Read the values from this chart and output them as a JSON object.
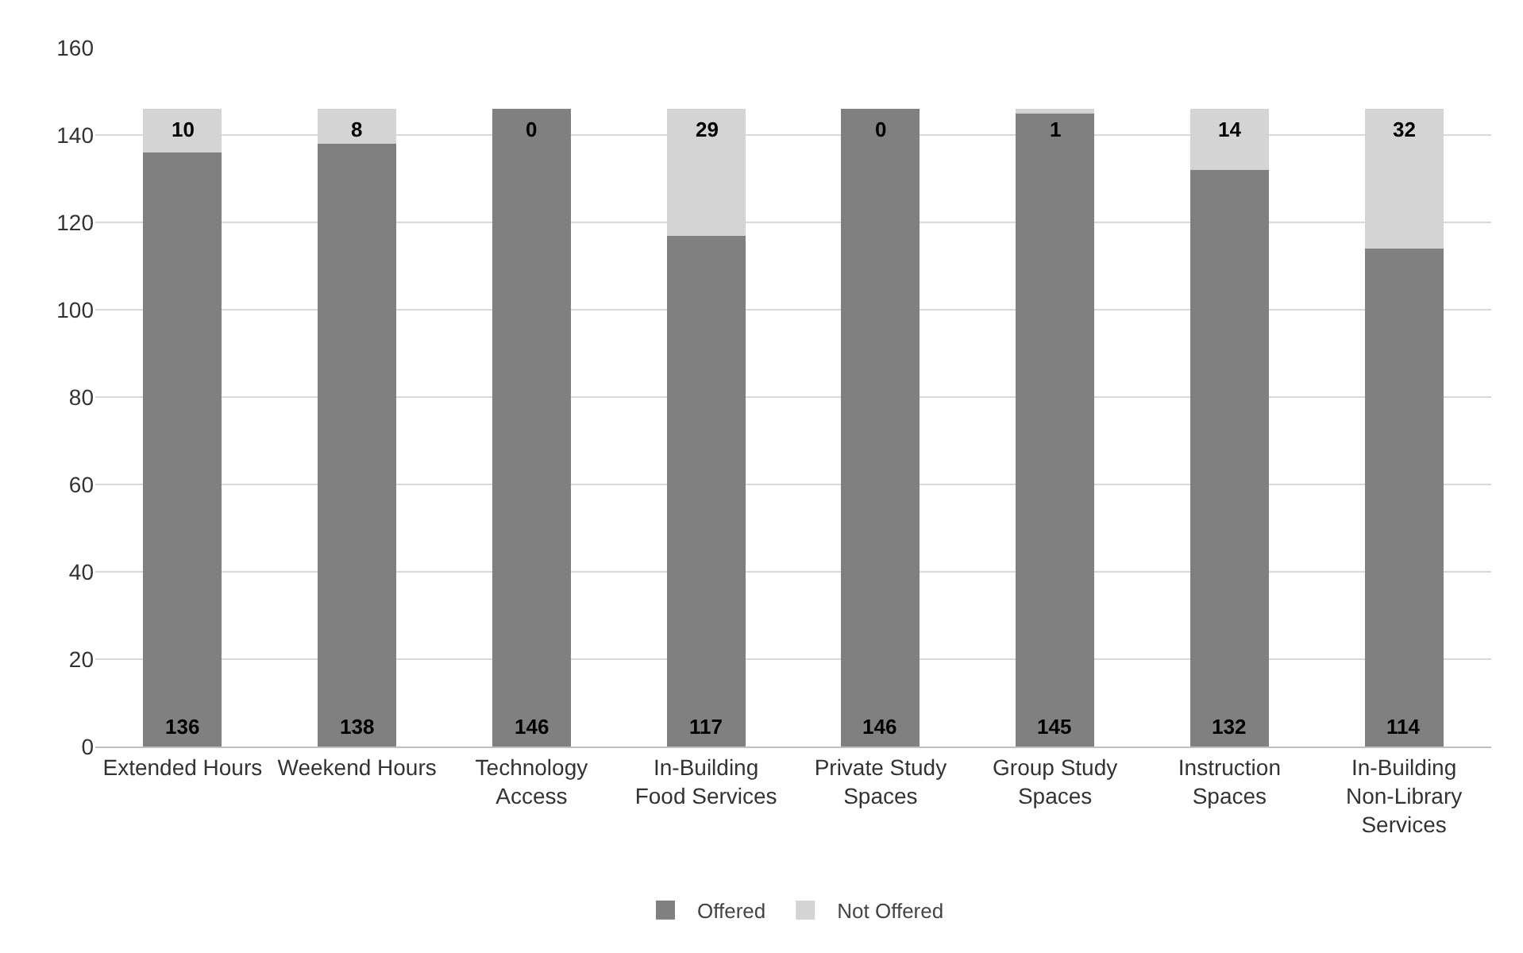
{
  "chart_data": {
    "type": "bar",
    "stacked": true,
    "categories": [
      "Extended Hours",
      "Weekend Hours",
      "Technology Access",
      "In-Building Food Services",
      "Private Study Spaces",
      "Group Study Spaces",
      "Instruction Spaces",
      "In-Building Non-Library Services"
    ],
    "series": [
      {
        "name": "Offered",
        "color": "#808080",
        "values": [
          136,
          138,
          146,
          117,
          146,
          145,
          132,
          114
        ]
      },
      {
        "name": "Not Offered",
        "color": "#d4d4d4",
        "values": [
          10,
          8,
          0,
          29,
          0,
          1,
          14,
          32
        ]
      }
    ],
    "ylim": [
      0,
      160
    ],
    "yticks": [
      0,
      20,
      40,
      60,
      80,
      100,
      120,
      140,
      160
    ],
    "grid": "y",
    "legend": "bottom",
    "data_labels": true
  }
}
